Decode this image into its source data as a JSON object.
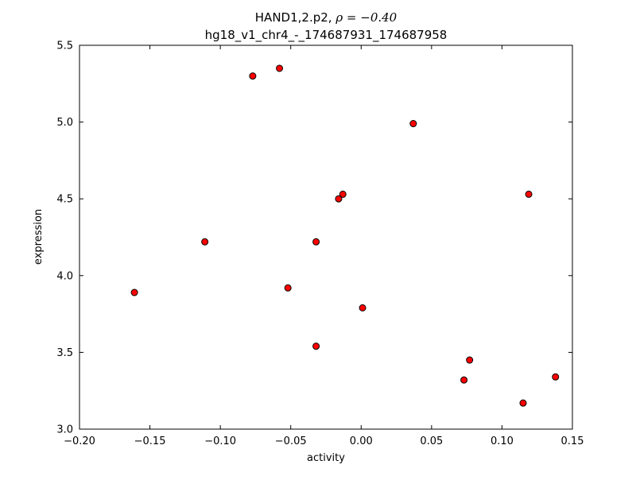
{
  "figure": {
    "title_prefix": "HAND1,2.p2, ",
    "title_math": "ρ = −0.40",
    "subtitle": "hg18_v1_chr4_-_174687931_174687958"
  },
  "chart_data": {
    "type": "scatter",
    "title": "HAND1,2.p2, ρ = −0.40",
    "subtitle": "hg18_v1_chr4_-_174687931_174687958",
    "xlabel": "activity",
    "ylabel": "expression",
    "xlim": [
      -0.2,
      0.15
    ],
    "ylim": [
      3.0,
      5.5
    ],
    "grid": false,
    "legend": null,
    "marker": {
      "shape": "circle",
      "fill": "#ff0000",
      "edge": "#000000",
      "radius": 4
    },
    "xticks": [
      {
        "v": -0.2,
        "label": "−0.20"
      },
      {
        "v": -0.15,
        "label": "−0.15"
      },
      {
        "v": -0.1,
        "label": "−0.10"
      },
      {
        "v": -0.05,
        "label": "−0.05"
      },
      {
        "v": 0.0,
        "label": "0.00"
      },
      {
        "v": 0.05,
        "label": "0.05"
      },
      {
        "v": 0.1,
        "label": "0.10"
      },
      {
        "v": 0.15,
        "label": "0.15"
      }
    ],
    "yticks": [
      {
        "v": 3.0,
        "label": "3.0"
      },
      {
        "v": 3.5,
        "label": "3.5"
      },
      {
        "v": 4.0,
        "label": "4.0"
      },
      {
        "v": 4.5,
        "label": "4.5"
      },
      {
        "v": 5.0,
        "label": "5.0"
      },
      {
        "v": 5.5,
        "label": "5.5"
      }
    ],
    "points": [
      {
        "x": -0.077,
        "y": 5.3
      },
      {
        "x": -0.058,
        "y": 5.35
      },
      {
        "x": 0.037,
        "y": 4.99
      },
      {
        "x": -0.016,
        "y": 4.5
      },
      {
        "x": -0.013,
        "y": 4.53
      },
      {
        "x": 0.119,
        "y": 4.53
      },
      {
        "x": -0.111,
        "y": 4.22
      },
      {
        "x": -0.032,
        "y": 4.22
      },
      {
        "x": -0.052,
        "y": 3.92
      },
      {
        "x": -0.161,
        "y": 3.89
      },
      {
        "x": 0.001,
        "y": 3.79
      },
      {
        "x": -0.032,
        "y": 3.54
      },
      {
        "x": 0.077,
        "y": 3.45
      },
      {
        "x": 0.073,
        "y": 3.32
      },
      {
        "x": 0.138,
        "y": 3.34
      },
      {
        "x": 0.115,
        "y": 3.17
      }
    ]
  }
}
